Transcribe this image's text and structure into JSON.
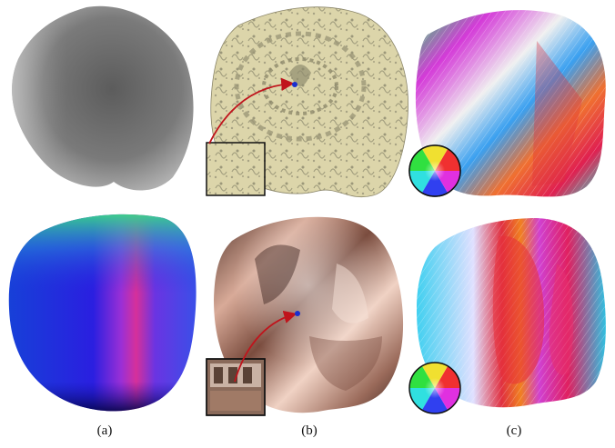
{
  "figure": {
    "captions": [
      "(a)",
      "(b)",
      "(c)"
    ]
  },
  "colors": {
    "arrow": "#c0141c",
    "marker": "#1a2fcf",
    "inset_border": "#111111",
    "background": "#ffffff"
  },
  "panels": [
    {
      "id": "a-top",
      "description_icon": "depth-shape-icon"
    },
    {
      "id": "b-top",
      "description_icon": "textured-shape-icon"
    },
    {
      "id": "c-top",
      "description_icon": "flow-field-shape-icon"
    },
    {
      "id": "a-bottom",
      "description_icon": "normal-map-shape-icon"
    },
    {
      "id": "b-bottom",
      "description_icon": "reflective-shape-icon"
    },
    {
      "id": "c-bottom",
      "description_icon": "flow-field-shape-icon"
    }
  ]
}
